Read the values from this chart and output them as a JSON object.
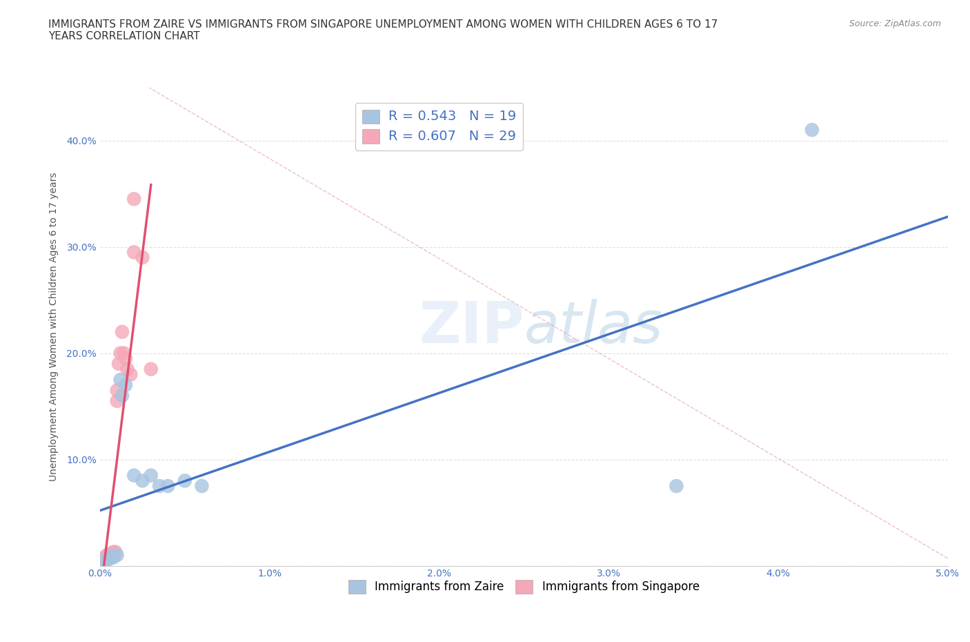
{
  "title": "IMMIGRANTS FROM ZAIRE VS IMMIGRANTS FROM SINGAPORE UNEMPLOYMENT AMONG WOMEN WITH CHILDREN AGES 6 TO 17\nYEARS CORRELATION CHART",
  "source": "Source: ZipAtlas.com",
  "xlabel": "",
  "ylabel": "Unemployment Among Women with Children Ages 6 to 17 years",
  "xlim": [
    0.0,
    0.05
  ],
  "ylim": [
    0.0,
    0.45
  ],
  "xticks": [
    0.0,
    0.01,
    0.02,
    0.03,
    0.04,
    0.05
  ],
  "xticklabels": [
    "0.0%",
    "1.0%",
    "2.0%",
    "3.0%",
    "4.0%",
    "5.0%"
  ],
  "yticks": [
    0.0,
    0.1,
    0.2,
    0.3,
    0.4
  ],
  "yticklabels": [
    "",
    "10.0%",
    "20.0%",
    "30.0%",
    "40.0%"
  ],
  "grid_color": "#dddddd",
  "background_color": "#ffffff",
  "watermark": "ZIPatlas",
  "zaire_color": "#a8c4e0",
  "singapore_color": "#f4a8b8",
  "zaire_line_color": "#4472c4",
  "singapore_line_color": "#e05070",
  "diagonal_color": "#e8b0bc",
  "R_zaire": 0.543,
  "N_zaire": 19,
  "R_singapore": 0.607,
  "N_singapore": 29,
  "zaire_x": [
    0.0003,
    0.0004,
    0.0005,
    0.0006,
    0.0007,
    0.0008,
    0.001,
    0.0012,
    0.0013,
    0.0015,
    0.002,
    0.0025,
    0.003,
    0.0035,
    0.004,
    0.005,
    0.006,
    0.034,
    0.042
  ],
  "zaire_y": [
    0.005,
    0.005,
    0.008,
    0.007,
    0.009,
    0.008,
    0.01,
    0.175,
    0.16,
    0.17,
    0.085,
    0.08,
    0.085,
    0.075,
    0.075,
    0.08,
    0.075,
    0.075,
    0.41
  ],
  "singapore_x": [
    0.0001,
    0.0002,
    0.0002,
    0.0003,
    0.0003,
    0.0004,
    0.0004,
    0.0005,
    0.0005,
    0.0006,
    0.0006,
    0.0007,
    0.0007,
    0.0008,
    0.0008,
    0.0009,
    0.001,
    0.001,
    0.0011,
    0.0012,
    0.0013,
    0.0014,
    0.0015,
    0.0016,
    0.0018,
    0.002,
    0.002,
    0.0025,
    0.003
  ],
  "singapore_y": [
    0.005,
    0.005,
    0.007,
    0.007,
    0.008,
    0.008,
    0.01,
    0.009,
    0.01,
    0.01,
    0.011,
    0.01,
    0.012,
    0.012,
    0.013,
    0.013,
    0.155,
    0.165,
    0.19,
    0.2,
    0.22,
    0.2,
    0.195,
    0.185,
    0.18,
    0.345,
    0.295,
    0.29,
    0.185
  ],
  "title_fontsize": 11,
  "axis_label_fontsize": 10,
  "tick_fontsize": 10,
  "legend_fontsize": 12,
  "source_fontsize": 9
}
